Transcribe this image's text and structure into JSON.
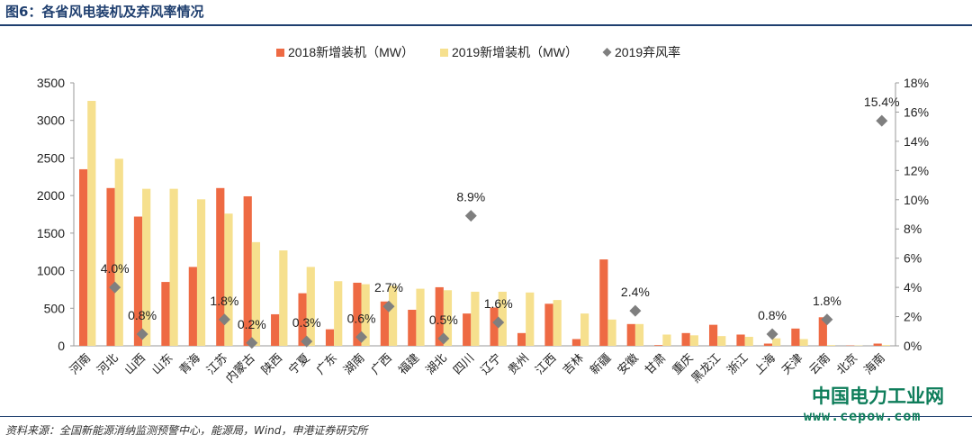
{
  "figure": {
    "title": "图6：各省风电装机及弃风率情况",
    "source": "资料来源：全国新能源消纳监测预警中心，能源局，Wind，申港证券研究所",
    "watermark_cn": "中国电力工业网",
    "watermark_url": "www.cepow.com"
  },
  "chart_data": {
    "type": "bar",
    "categories": [
      "河南",
      "河北",
      "山西",
      "山东",
      "青海",
      "江苏",
      "内蒙古",
      "陕西",
      "宁夏",
      "广东",
      "湖南",
      "广西",
      "福建",
      "湖北",
      "四川",
      "辽宁",
      "贵州",
      "江西",
      "吉林",
      "新疆",
      "安徽",
      "甘肃",
      "重庆",
      "黑龙江",
      "浙江",
      "上海",
      "天津",
      "云南",
      "北京",
      "海南"
    ],
    "series": [
      {
        "name": "2018新增装机（MW）",
        "axis": "left",
        "kind": "bar",
        "color": "#ee6a43",
        "values": [
          2350,
          2100,
          1720,
          850,
          1050,
          2100,
          1990,
          420,
          700,
          220,
          840,
          590,
          480,
          780,
          430,
          510,
          170,
          560,
          90,
          1150,
          290,
          10,
          170,
          280,
          150,
          30,
          230,
          380,
          5,
          30
        ]
      },
      {
        "name": "2019新增装机（MW）",
        "axis": "left",
        "kind": "bar",
        "color": "#f6e08e",
        "values": [
          3260,
          2490,
          2090,
          2090,
          1950,
          1760,
          1380,
          1270,
          1050,
          860,
          820,
          800,
          760,
          740,
          720,
          720,
          710,
          610,
          430,
          350,
          290,
          150,
          140,
          130,
          120,
          100,
          90,
          10,
          5,
          10
        ]
      },
      {
        "name": "2019弃风率",
        "axis": "right",
        "kind": "point",
        "color": "#7f7f7f",
        "points": [
          {
            "category": "河北",
            "value": 4.0,
            "label": "4.0%"
          },
          {
            "category": "山西",
            "value": 0.8,
            "label": "0.8%"
          },
          {
            "category": "江苏",
            "value": 1.8,
            "label": "1.8%"
          },
          {
            "category": "内蒙古",
            "value": 0.2,
            "label": "0.2%"
          },
          {
            "category": "宁夏",
            "value": 0.3,
            "label": "0.3%"
          },
          {
            "category": "湖南",
            "value": 0.6,
            "label": "0.6%"
          },
          {
            "category": "广西",
            "value": 2.7,
            "label": "2.7%"
          },
          {
            "category": "湖北",
            "value": 0.5,
            "label": "0.5%"
          },
          {
            "category": "四川",
            "value": 8.9,
            "label": "8.9%"
          },
          {
            "category": "辽宁",
            "value": 1.6,
            "label": "1.6%"
          },
          {
            "category": "安徽",
            "value": 2.4,
            "label": "2.4%"
          },
          {
            "category": "上海",
            "value": 0.8,
            "label": "0.8%"
          },
          {
            "category": "云南",
            "value": 1.8,
            "label": "1.8%"
          },
          {
            "category": "海南",
            "value": 15.4,
            "label": "15.4%"
          }
        ]
      }
    ],
    "y_left": {
      "min": 0,
      "max": 3500,
      "ticks": [
        "0",
        "500",
        "1000",
        "1500",
        "2000",
        "2500",
        "3000",
        "3500"
      ]
    },
    "y_right": {
      "min": 0,
      "max": 18,
      "ticks": [
        "0%",
        "2%",
        "4%",
        "6%",
        "8%",
        "10%",
        "12%",
        "14%",
        "16%",
        "18%"
      ]
    },
    "legend_position": "top-center",
    "grid": false
  }
}
